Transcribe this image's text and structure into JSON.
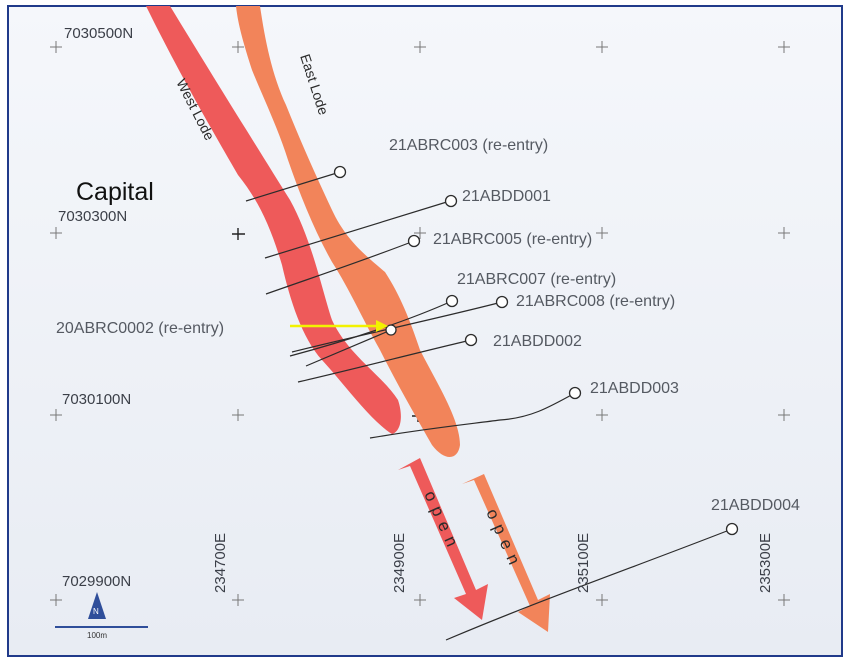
{
  "map_title": "Capital",
  "northings": [
    {
      "label": "7030500N"
    },
    {
      "label": "7030300N"
    },
    {
      "label": "7030100N"
    },
    {
      "label": "7029900N"
    }
  ],
  "eastings": [
    {
      "label": "234700E"
    },
    {
      "label": "234900E"
    },
    {
      "label": "235100E"
    },
    {
      "label": "235300E"
    }
  ],
  "lodes": {
    "west": {
      "label": "West Lode",
      "color": "#ee5a5a"
    },
    "east": {
      "label": "East Lode",
      "color": "#f2845a"
    }
  },
  "open_arrows": [
    {
      "text": "open"
    },
    {
      "text": "open"
    }
  ],
  "drillholes": [
    {
      "id": "21ABRC003 (re-entry)"
    },
    {
      "id": "21ABDD001"
    },
    {
      "id": "21ABRC005 (re-entry)"
    },
    {
      "id": "21ABRC007 (re-entry)"
    },
    {
      "id": "21ABRC008 (re-entry)"
    },
    {
      "id": "20ABRC0002 (re-entry)"
    },
    {
      "id": "21ABDD002"
    },
    {
      "id": "21ABDD003"
    },
    {
      "id": "21ABDD004"
    }
  ],
  "scale_bar": {
    "label": "100m"
  },
  "north_arrow": {
    "label": "N"
  },
  "colors": {
    "frame": "#203a8a",
    "background_top": "#f4f6fa",
    "background_bottom": "#e9edf4",
    "pointer": "#f2f200"
  }
}
